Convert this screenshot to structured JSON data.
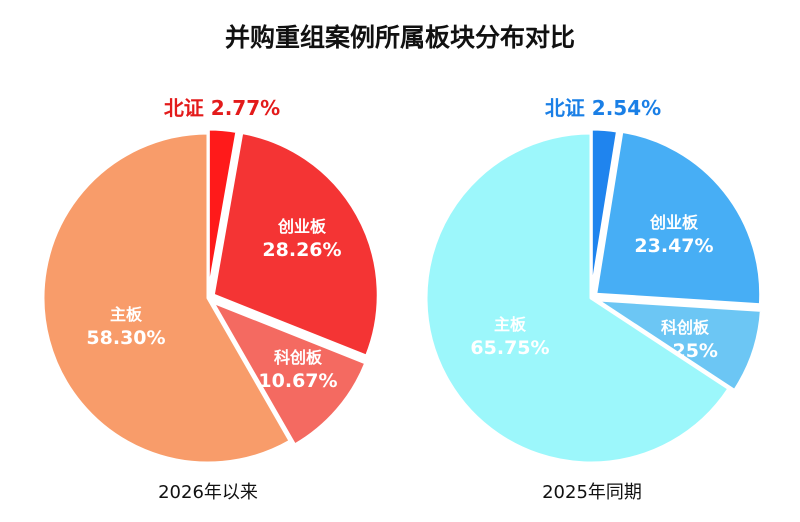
{
  "title": "并购重组案例所属板块分布对比",
  "chart_data": [
    {
      "type": "pie",
      "caption": "2026年以来",
      "slices": [
        {
          "name": "北证",
          "value": 2.77,
          "label": "2.77%",
          "color": "#ff1a1a"
        },
        {
          "name": "创业板",
          "value": 28.26,
          "label": "28.26%",
          "color": "#f43434"
        },
        {
          "name": "科创板",
          "value": 10.67,
          "label": "10.67%",
          "color": "#f46a61"
        },
        {
          "name": "主板",
          "value": 58.3,
          "label": "58.30%",
          "color": "#f89c6a"
        }
      ],
      "callout_color": "#e31b1b"
    },
    {
      "type": "pie",
      "caption": "2025年同期",
      "slices": [
        {
          "name": "北证",
          "value": 2.54,
          "label": "2.54%",
          "color": "#1f84ee"
        },
        {
          "name": "创业板",
          "value": 23.47,
          "label": "23.47%",
          "color": "#47aef5"
        },
        {
          "name": "科创板",
          "value": 8.25,
          "label": "8.25%",
          "color": "#6cc6f4"
        },
        {
          "name": "主板",
          "value": 65.75,
          "label": "65.75%",
          "color": "#9cf7fb"
        }
      ],
      "callout_color": "#1a7fe6"
    }
  ]
}
